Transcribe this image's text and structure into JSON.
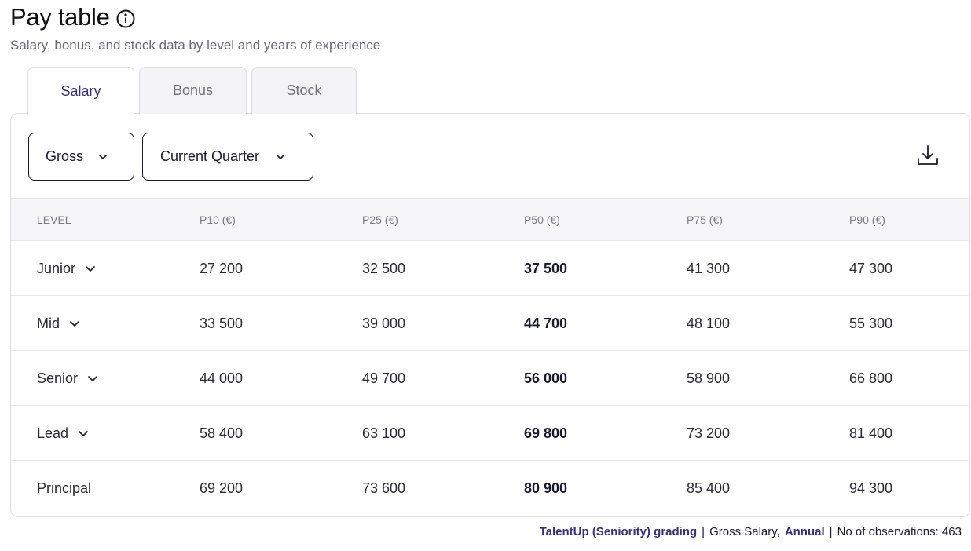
{
  "header": {
    "title": "Pay table",
    "subtitle": "Salary, bonus, and stock data by level and years of experience"
  },
  "tabs": [
    {
      "label": "Salary",
      "active": true
    },
    {
      "label": "Bonus",
      "active": false
    },
    {
      "label": "Stock",
      "active": false
    }
  ],
  "filters": {
    "pay_type": "Gross",
    "period": "Current Quarter"
  },
  "table": {
    "columns": [
      "LEVEL",
      "P10 (€)",
      "P25 (€)",
      "P50 (€)",
      "P75 (€)",
      "P90 (€)"
    ],
    "rows": [
      {
        "level": "Junior",
        "expandable": true,
        "p10": "27 200",
        "p25": "32 500",
        "p50": "37 500",
        "p75": "41 300",
        "p90": "47 300"
      },
      {
        "level": "Mid",
        "expandable": true,
        "p10": "33 500",
        "p25": "39 000",
        "p50": "44 700",
        "p75": "48 100",
        "p90": "55 300"
      },
      {
        "level": "Senior",
        "expandable": true,
        "p10": "44 000",
        "p25": "49 700",
        "p50": "56 000",
        "p75": "58 900",
        "p90": "66 800"
      },
      {
        "level": "Lead",
        "expandable": true,
        "p10": "58 400",
        "p25": "63 100",
        "p50": "69 800",
        "p75": "73 200",
        "p90": "81 400"
      },
      {
        "level": "Principal",
        "expandable": false,
        "p10": "69 200",
        "p25": "73 600",
        "p50": "80 900",
        "p75": "85 400",
        "p90": "94 300"
      }
    ]
  },
  "footer": {
    "grading_link": "TalentUp (Seniority) grading",
    "salary_type": "Gross Salary,",
    "period_link": "Annual",
    "observations": "No of observations: 463"
  },
  "icons": {
    "info": "info-icon",
    "chevron": "chevron-down-icon",
    "download": "download-icon"
  },
  "colors": {
    "accent": "#3b2f7a",
    "text": "#1a1a2e",
    "muted": "#6b6b76",
    "header_bg": "#f6f6f8",
    "border": "#dcdce2"
  }
}
